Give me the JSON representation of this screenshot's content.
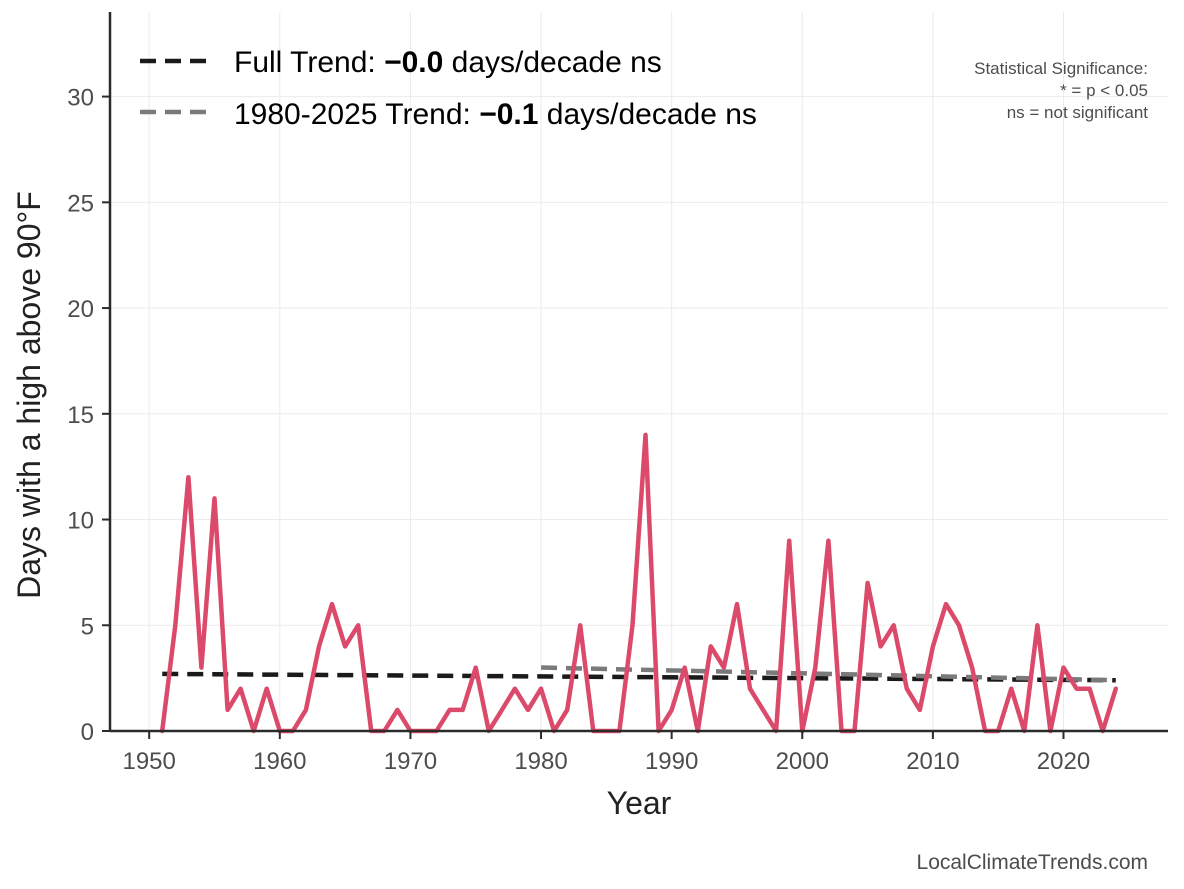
{
  "chart_data": {
    "type": "line",
    "xlabel": "Year",
    "ylabel": "Days with a high above 90°F",
    "xlim": [
      1947,
      2028
    ],
    "ylim": [
      0,
      34
    ],
    "x_ticks": [
      1950,
      1960,
      1970,
      1980,
      1990,
      2000,
      2010,
      2020
    ],
    "y_ticks": [
      0,
      5,
      10,
      15,
      20,
      25,
      30
    ],
    "grid": true,
    "legend_position": "top-left",
    "series": [
      {
        "color": "#dc4a6b",
        "x": [
          1951,
          1952,
          1953,
          1954,
          1955,
          1956,
          1957,
          1958,
          1959,
          1960,
          1961,
          1962,
          1963,
          1964,
          1965,
          1966,
          1967,
          1968,
          1969,
          1970,
          1971,
          1972,
          1973,
          1974,
          1975,
          1976,
          1977,
          1978,
          1979,
          1980,
          1981,
          1982,
          1983,
          1984,
          1985,
          1986,
          1987,
          1988,
          1989,
          1990,
          1991,
          1992,
          1993,
          1994,
          1995,
          1996,
          1997,
          1998,
          1999,
          2000,
          2001,
          2002,
          2003,
          2004,
          2005,
          2006,
          2007,
          2008,
          2009,
          2010,
          2011,
          2012,
          2013,
          2014,
          2015,
          2016,
          2017,
          2018,
          2019,
          2020,
          2021,
          2022,
          2023,
          2024
        ],
        "values": [
          0,
          5,
          12,
          3,
          11,
          1,
          2,
          0,
          2,
          0,
          0,
          1,
          4,
          6,
          4,
          5,
          0,
          0,
          1,
          0,
          0,
          0,
          1,
          1,
          3,
          0,
          1,
          2,
          1,
          2,
          0,
          1,
          5,
          0,
          0,
          0,
          5,
          14,
          0,
          1,
          3,
          0,
          4,
          3,
          6,
          2,
          1,
          0,
          9,
          0,
          3,
          9,
          0,
          0,
          7,
          4,
          5,
          2,
          1,
          4,
          6,
          5,
          3,
          0,
          0,
          2,
          0,
          5,
          0,
          3,
          2,
          2,
          0,
          2
        ]
      }
    ],
    "trends": [
      {
        "label": "Full Trend: ",
        "value": "−0.0",
        "unit": " days/decade ns",
        "color": "#1a1a1a",
        "x": [
          1951,
          2024
        ],
        "y": [
          2.7,
          2.4
        ]
      },
      {
        "label": "1980-2025 Trend: ",
        "value": "−0.1",
        "unit": " days/decade ns",
        "color": "#7a7a7a",
        "x": [
          1980,
          2024
        ],
        "y": [
          3.0,
          2.4
        ]
      }
    ],
    "annotation_lines": [
      "Statistical Significance:",
      "* = p < 0.05",
      "ns = not significant"
    ],
    "credit": "LocalClimateTrends.com"
  }
}
